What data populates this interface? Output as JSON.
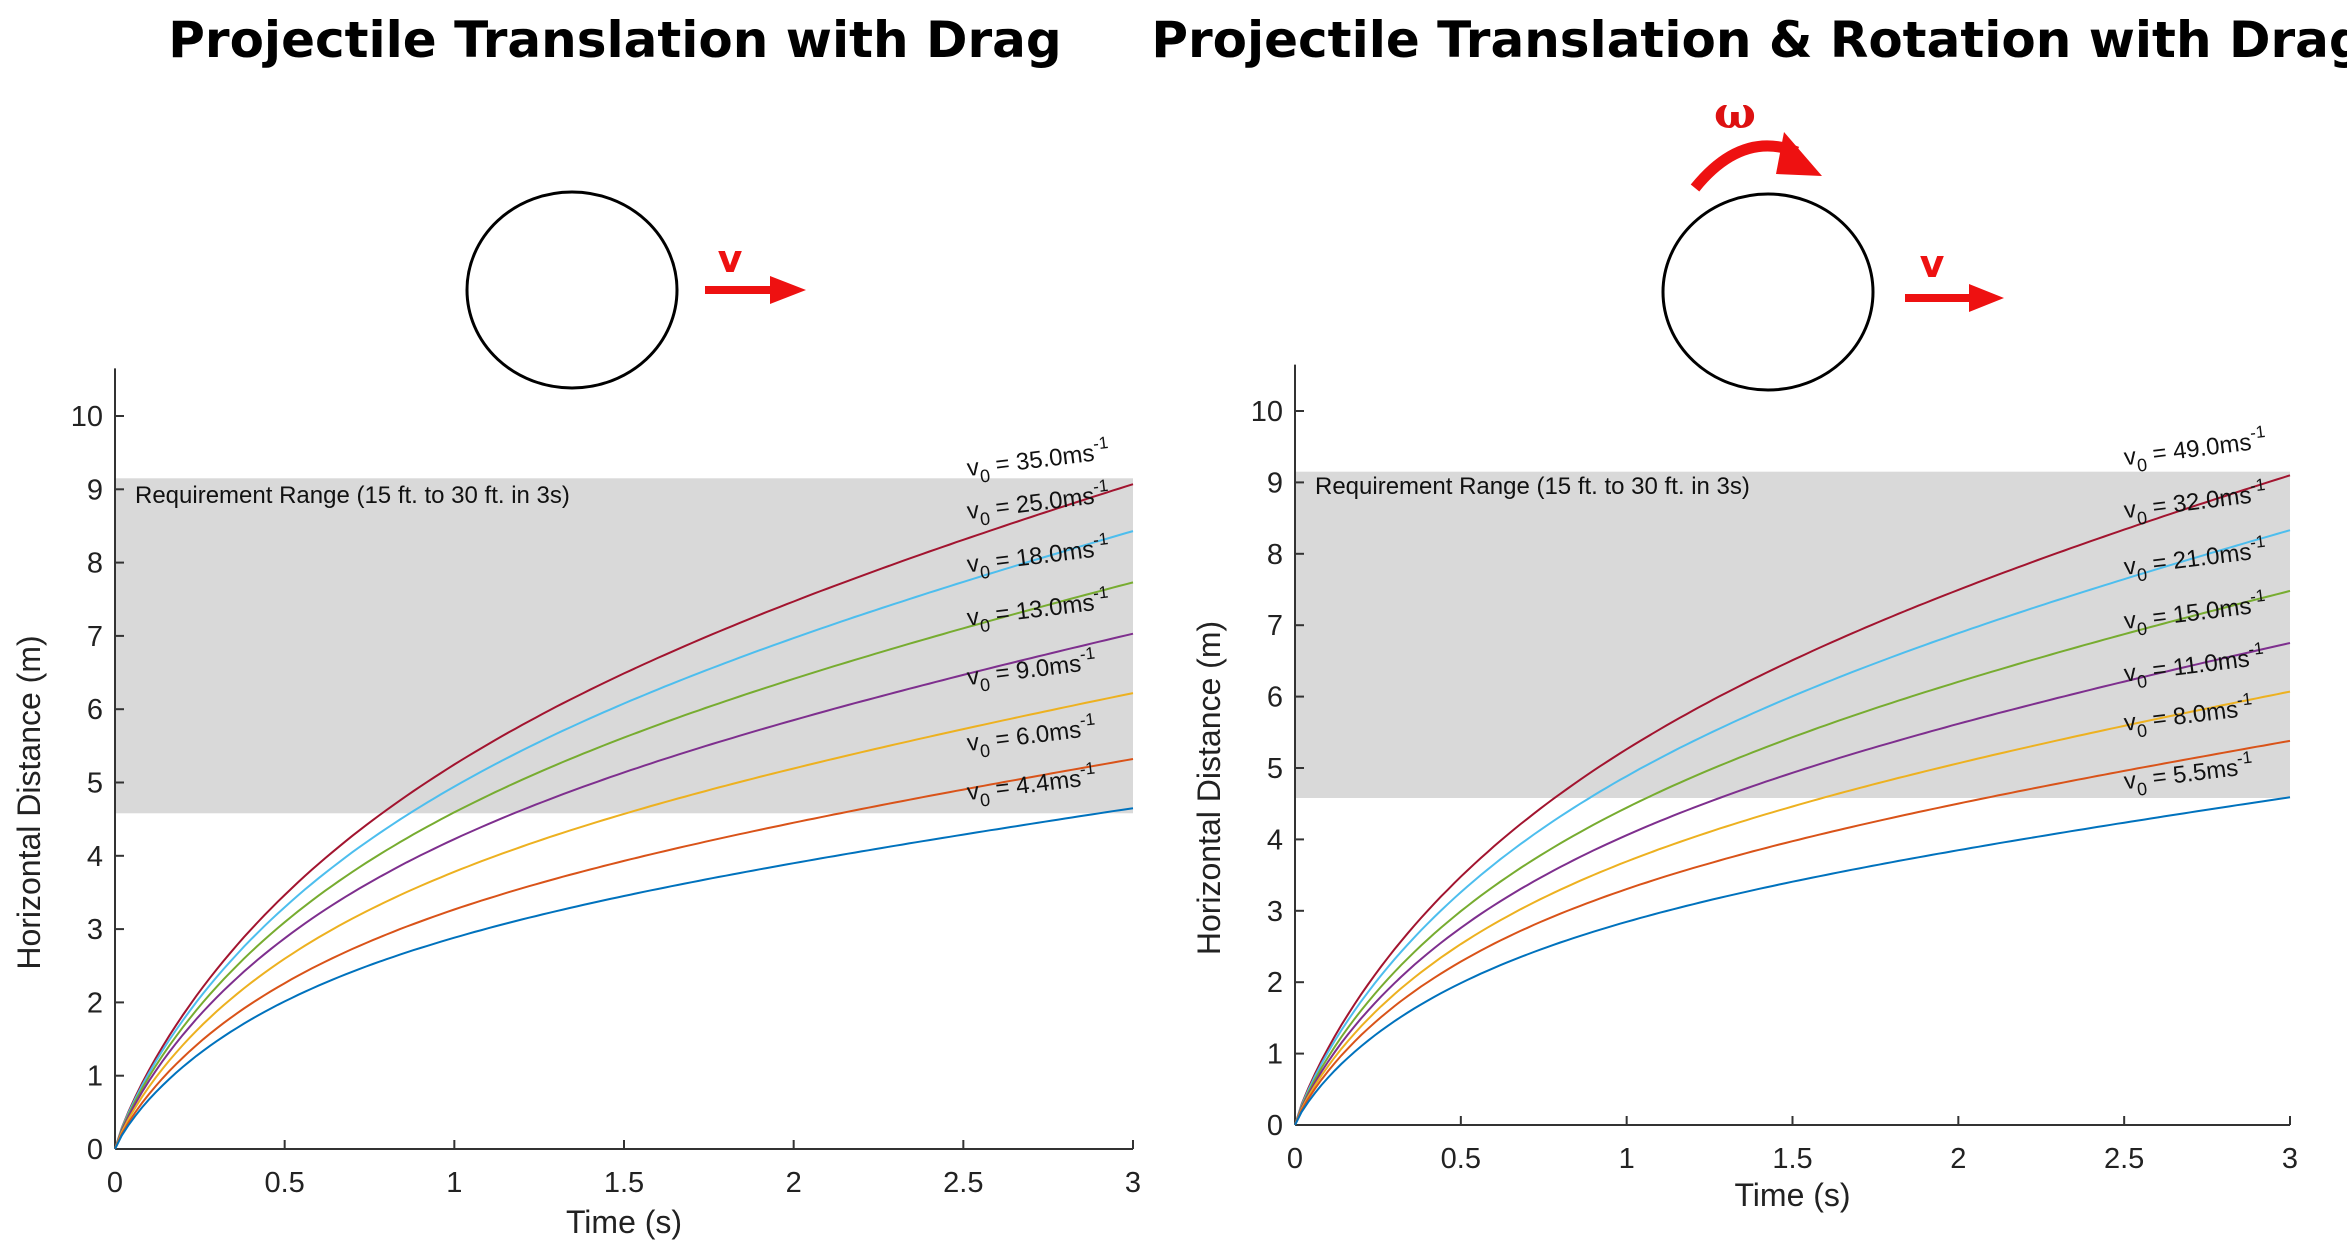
{
  "colors": {
    "arrow": "#ee1111",
    "range_fill": "#d9d9d9",
    "axis": "#333333",
    "series": [
      "#a2142f",
      "#4dbeee",
      "#77ac30",
      "#7e2f8e",
      "#edb120",
      "#d95319",
      "#0072bd"
    ]
  },
  "icons": {
    "projectile": "circle-icon",
    "velocity": "right-arrow-icon",
    "rotation": "curved-arrow-icon"
  },
  "chart_data": [
    {
      "type": "line",
      "title": "Projectile Translation with Drag",
      "xlabel": "Time (s)",
      "ylabel": "Horizontal Distance (m)",
      "xlim": [
        0,
        3
      ],
      "ylim": [
        0,
        10.5
      ],
      "xticks": [
        "0",
        "0.5",
        "1",
        "1.5",
        "2",
        "2.5",
        "3"
      ],
      "yticks": [
        "0",
        "1",
        "2",
        "3",
        "4",
        "5",
        "6",
        "7",
        "8",
        "9",
        "10"
      ],
      "diagram": {
        "velocity_symbol": "v"
      },
      "requirement_range": {
        "label": "Requirement Range (15 ft. to 30 ft. in 3s)",
        "y_min": 4.58,
        "y_max": 9.15
      },
      "series": [
        {
          "name": "v0 = 35.0",
          "velocity": "35.0",
          "values_at_3s": 9.07
        },
        {
          "name": "v0 = 25.0",
          "velocity": "25.0",
          "values_at_3s": 8.43
        },
        {
          "name": "v0 = 18.0",
          "velocity": "18.0",
          "values_at_3s": 7.73
        },
        {
          "name": "v0 = 13.0",
          "velocity": "13.0",
          "values_at_3s": 7.03
        },
        {
          "name": "v0 = 9.0",
          "velocity": "9.0",
          "values_at_3s": 6.22
        },
        {
          "name": "v0 = 6.0",
          "velocity": "6.0",
          "values_at_3s": 5.32
        },
        {
          "name": "v0 = 4.4",
          "velocity": "4.4",
          "values_at_3s": 4.65
        }
      ]
    },
    {
      "type": "line",
      "title": "Projectile Translation & Rotation with Drag",
      "xlabel": "Time (s)",
      "ylabel": "Horizontal Distance (m)",
      "xlim": [
        0,
        3
      ],
      "ylim": [
        0,
        10.5
      ],
      "xticks": [
        "0",
        "0.5",
        "1",
        "1.5",
        "2",
        "2.5",
        "3"
      ],
      "yticks": [
        "0",
        "1",
        "2",
        "3",
        "4",
        "5",
        "6",
        "7",
        "8",
        "9",
        "10"
      ],
      "diagram": {
        "velocity_symbol": "v",
        "rotation_symbol": "ω"
      },
      "requirement_range": {
        "label": "Requirement Range (15 ft. to 30 ft. in 3s)",
        "y_min": 4.58,
        "y_max": 9.15
      },
      "series": [
        {
          "name": "v0 = 49.0",
          "velocity": "49.0",
          "values_at_3s": 9.1
        },
        {
          "name": "v0 = 32.0",
          "velocity": "32.0",
          "values_at_3s": 8.33
        },
        {
          "name": "v0 = 21.0",
          "velocity": "21.0",
          "values_at_3s": 7.48
        },
        {
          "name": "v0 = 15.0",
          "velocity": "15.0",
          "values_at_3s": 6.75
        },
        {
          "name": "v0 = 11.0",
          "velocity": "11.0",
          "values_at_3s": 6.07
        },
        {
          "name": "v0 = 8.0",
          "velocity": "8.0",
          "values_at_3s": 5.38
        },
        {
          "name": "v0 = 5.5",
          "velocity": "5.5",
          "values_at_3s": 4.59
        }
      ]
    }
  ],
  "v0_prefix": "v",
  "v0_subscript": "0",
  "v0_equals": " = ",
  "v0_unit": "ms",
  "v0_exponent": "-1"
}
